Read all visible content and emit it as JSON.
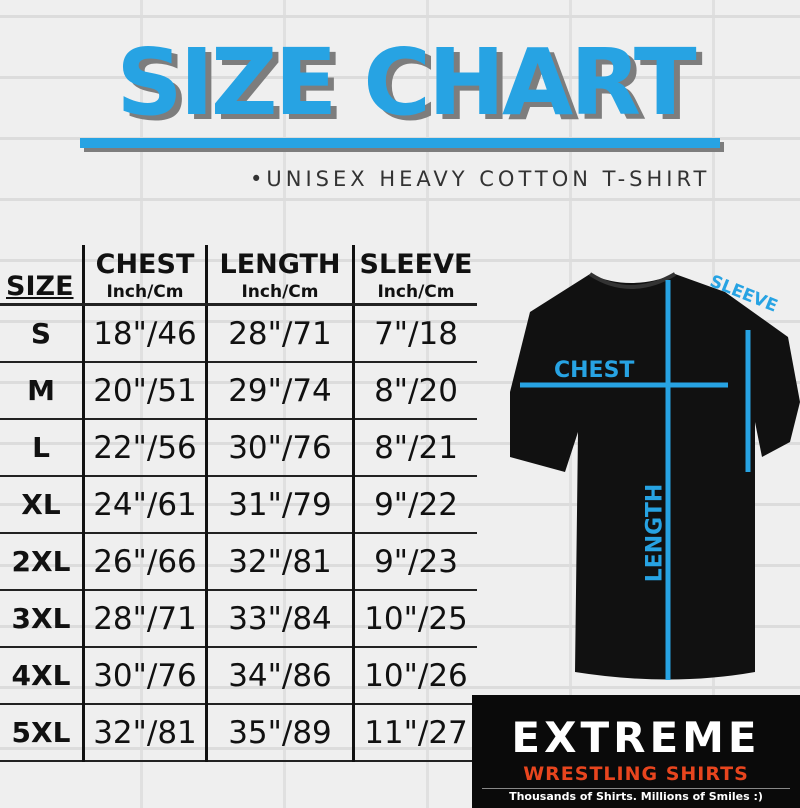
{
  "title": "SIZE CHART",
  "subtitle": "•UNISEX HEAVY COTTON T-SHIRT",
  "table": {
    "headers": {
      "size": "SIZE",
      "chest": "CHEST",
      "length": "LENGTH",
      "sleeve": "SLEEVE",
      "unit": "Inch/Cm"
    },
    "rows": [
      {
        "size": "S",
        "chest": "18\"/46",
        "length": "28\"/71",
        "sleeve": "7\"/18"
      },
      {
        "size": "M",
        "chest": "20\"/51",
        "length": "29\"/74",
        "sleeve": "8\"/20"
      },
      {
        "size": "L",
        "chest": "22\"/56",
        "length": "30\"/76",
        "sleeve": "8\"/21"
      },
      {
        "size": "XL",
        "chest": "24\"/61",
        "length": "31\"/79",
        "sleeve": "9\"/22"
      },
      {
        "size": "2XL",
        "chest": "26\"/66",
        "length": "32\"/81",
        "sleeve": "9\"/23"
      },
      {
        "size": "3XL",
        "chest": "28\"/71",
        "length": "33\"/84",
        "sleeve": "10\"/25"
      },
      {
        "size": "4XL",
        "chest": "30\"/76",
        "length": "34\"/86",
        "sleeve": "10\"/26"
      },
      {
        "size": "5XL",
        "chest": "32\"/81",
        "length": "35\"/89",
        "sleeve": "11\"/27"
      }
    ]
  },
  "diagram": {
    "chest": "CHEST",
    "length": "LENGTH",
    "sleeve": "SLEEVE",
    "shirt_color": "#111111",
    "line_color": "#27a3e3"
  },
  "logo": {
    "main": "EXTREME",
    "sub": "WRESTLING SHIRTS",
    "tagline": "Thousands of Shirts. Millions of Smiles :)"
  }
}
